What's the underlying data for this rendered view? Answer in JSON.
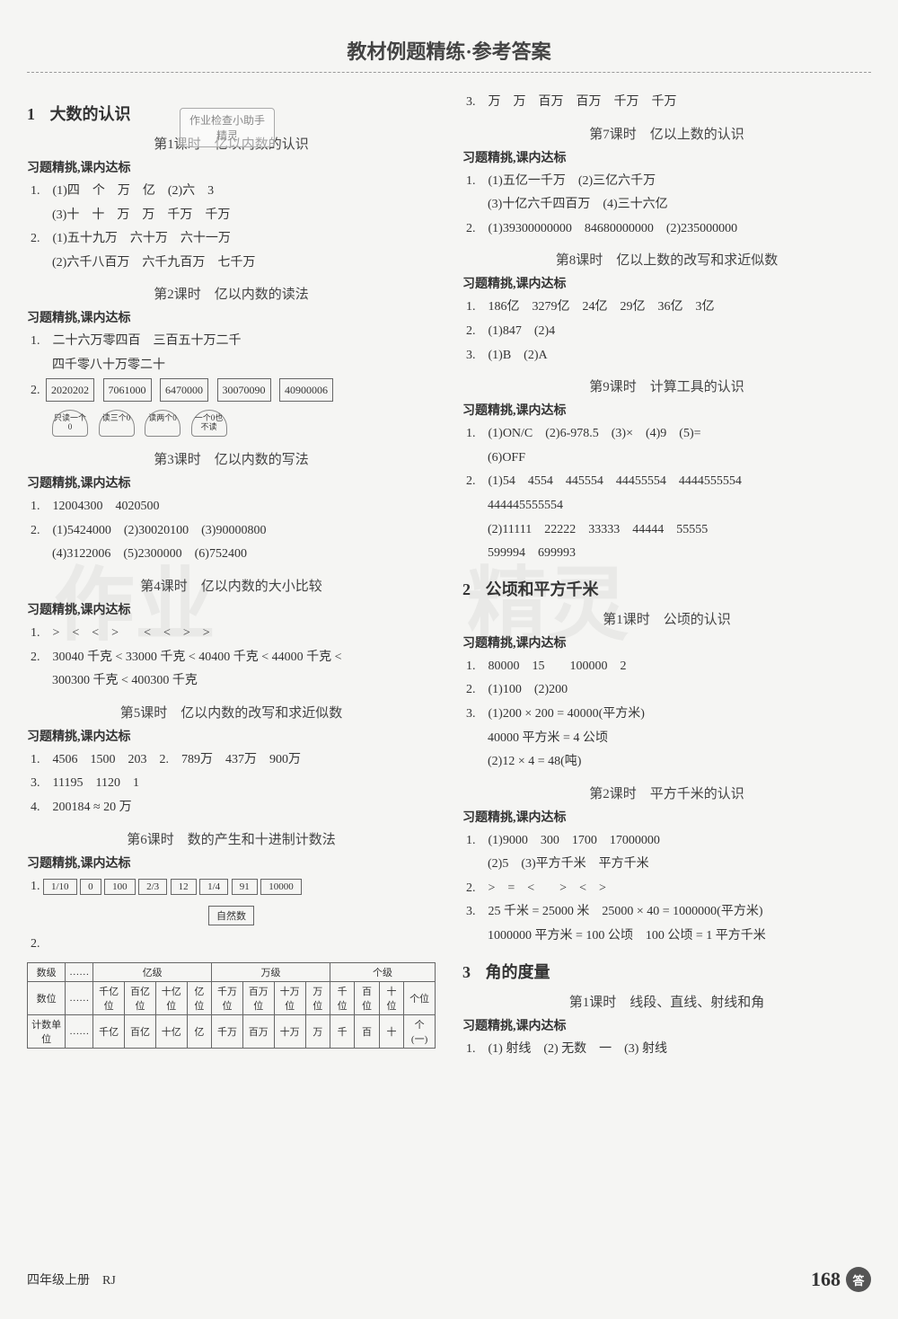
{
  "header": {
    "title": "教材例题精练·参考答案"
  },
  "stamp": {
    "line1": "作业检查小助手",
    "line2": "精灵"
  },
  "watermark": {
    "text1": "作业",
    "text2": "精灵"
  },
  "left": {
    "chapter1": {
      "num": "1",
      "title": "大数的认识"
    },
    "lesson1": {
      "title": "第1课时　亿以内数的认识",
      "sub": "习题精挑,课内达标",
      "i1": "1.　(1)四　个　万　亿　(2)六　3",
      "i1b": "(3)十　十　万　万　千万　千万",
      "i2": "2.　(1)五十九万　六十万　六十一万",
      "i2b": "(2)六千八百万　六千九百万　七千万"
    },
    "lesson2": {
      "title": "第2课时　亿以内数的读法",
      "sub": "习题精挑,课内达标",
      "i1": "1.　二十六万零四百　三百五十万二千",
      "i1b": "四千零八十万零二十",
      "i2": "2.",
      "boxes": [
        "2020202",
        "7061000",
        "6470000",
        "30070090",
        "40900006"
      ],
      "yurts": [
        "只读一个0",
        "读三个0",
        "读两个0",
        "一个0也不读"
      ]
    },
    "lesson3": {
      "title": "第3课时　亿以内数的写法",
      "sub": "习题精挑,课内达标",
      "i1": "1.　12004300　4020500",
      "i2": "2.　(1)5424000　(2)30020100　(3)90000800",
      "i2b": "(4)3122006　(5)2300000　(6)752400"
    },
    "lesson4": {
      "title": "第4课时　亿以内数的大小比较",
      "sub": "习题精挑,课内达标",
      "i1": "1.　>　<　<　>　　<　<　>　>",
      "i2": "2.　30040 千克 < 33000 千克 < 40400 千克 < 44000 千克 <",
      "i2b": "300300 千克 < 400300 千克"
    },
    "lesson5": {
      "title": "第5课时　亿以内数的改写和求近似数",
      "sub": "习题精挑,课内达标",
      "i1": "1.　4506　1500　203　2.　789万　437万　900万",
      "i3": "3.　11195　1120　1",
      "i4": "4.　200184 ≈ 20 万"
    },
    "lesson6": {
      "title": "第6课时　数的产生和十进制计数法",
      "sub": "习题精挑,课内达标",
      "i1": "1.",
      "boxes": [
        "1/10",
        "0",
        "100",
        "2/3",
        "12",
        "1/4",
        "91",
        "10000"
      ],
      "natural": "自然数",
      "i2": "2."
    },
    "table": {
      "r1": [
        "数级",
        "……",
        "亿级",
        "万级",
        "个级"
      ],
      "r2": [
        "数位",
        "……",
        "千亿位",
        "百亿位",
        "十亿位",
        "亿位",
        "千万位",
        "百万位",
        "十万位",
        "万位",
        "千位",
        "百位",
        "十位",
        "个位"
      ],
      "r3": [
        "计数单位",
        "……",
        "千亿",
        "百亿",
        "十亿",
        "亿",
        "千万",
        "百万",
        "十万",
        "万",
        "千",
        "百",
        "十",
        "个(一)"
      ]
    }
  },
  "right": {
    "i3top": "3.　万　万　百万　百万　千万　千万",
    "lesson7": {
      "title": "第7课时　亿以上数的认识",
      "sub": "习题精挑,课内达标",
      "i1": "1.　(1)五亿一千万　(2)三亿六千万",
      "i1b": "(3)十亿六千四百万　(4)三十六亿",
      "i2": "2.　(1)39300000000　84680000000　(2)235000000"
    },
    "lesson8": {
      "title": "第8课时　亿以上数的改写和求近似数",
      "sub": "习题精挑,课内达标",
      "i1": "1.　186亿　3279亿　24亿　29亿　36亿　3亿",
      "i2": "2.　(1)847　(2)4",
      "i3": "3.　(1)B　(2)A"
    },
    "lesson9": {
      "title": "第9课时　计算工具的认识",
      "sub": "习题精挑,课内达标",
      "i1": "1.　(1)ON/C　(2)6-978.5　(3)×　(4)9　(5)=",
      "i1b": "(6)OFF",
      "i2": "2.　(1)54　4554　445554　44455554　4444555554",
      "i2b": "444445555554",
      "i2c": "(2)11111　22222　33333　44444　55555",
      "i2d": "599994　699993"
    },
    "chapter2": {
      "num": "2",
      "title": "公顷和平方千米"
    },
    "lesson2_1": {
      "title": "第1课时　公顷的认识",
      "sub": "习题精挑,课内达标",
      "i1": "1.　80000　15　　100000　2",
      "i2": "2.　(1)100　(2)200",
      "i3": "3.　(1)200 × 200 = 40000(平方米)",
      "i3b": "40000 平方米 = 4 公顷",
      "i3c": "(2)12 × 4 = 48(吨)"
    },
    "lesson2_2": {
      "title": "第2课时　平方千米的认识",
      "sub": "习题精挑,课内达标",
      "i1": "1.　(1)9000　300　1700　17000000",
      "i1b": "(2)5　(3)平方千米　平方千米",
      "i2": "2.　>　=　<　　>　<　>",
      "i3": "3.　25 千米 = 25000 米　25000 × 40 = 1000000(平方米)",
      "i3b": "1000000 平方米 = 100 公顷　100 公顷 = 1 平方千米"
    },
    "chapter3": {
      "num": "3",
      "title": "角的度量"
    },
    "lesson3_1": {
      "title": "第1课时　线段、直线、射线和角",
      "sub": "习题精挑,课内达标",
      "i1": "1.　(1) 射线　(2) 无数　一　(3) 射线"
    }
  },
  "footer": {
    "left": "四年级上册　RJ",
    "pagenum": "168",
    "badge": "答"
  }
}
